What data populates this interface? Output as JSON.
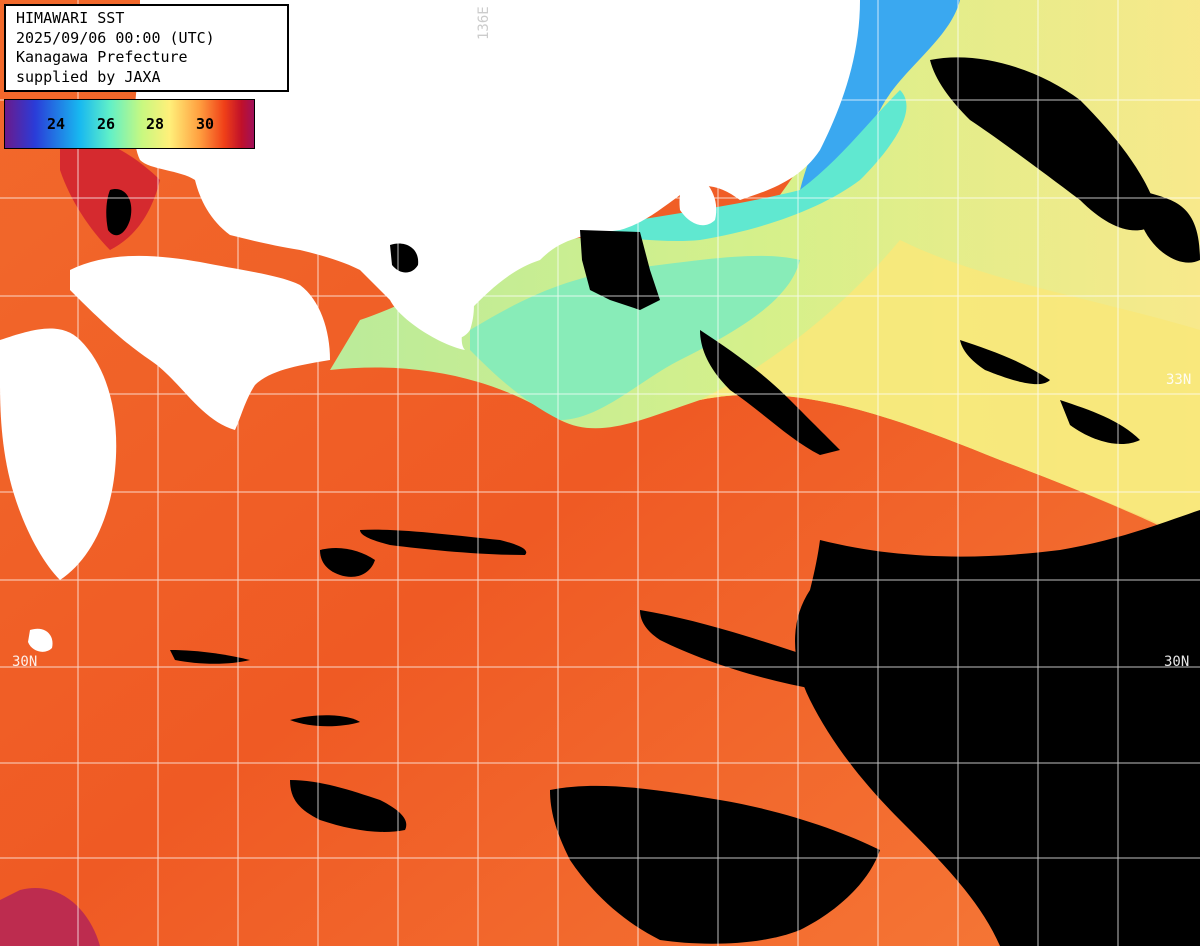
{
  "header": {
    "title": "HIMAWARI SST",
    "datetime": "2025/09/06 00:00 (UTC)",
    "region": "Kanagawa Prefecture",
    "credit": "supplied by JAXA"
  },
  "color_scale": {
    "labels": [
      "24",
      "26",
      "28",
      "30"
    ],
    "gradient": [
      "#6a1a8c",
      "#2a3cd8",
      "#18b8f0",
      "#60f0c8",
      "#c8f880",
      "#fff07a",
      "#ffa040",
      "#f04018",
      "#c0102a",
      "#a0105a"
    ]
  },
  "grid_labels": {
    "lat_33": "33N",
    "lat_30_left": "30N",
    "lat_30_right": "30N",
    "lon_136": "136E"
  },
  "colors": {
    "land": "#ffffff",
    "cloud_mask": "#000000",
    "warm_sea": "#ee5a28",
    "cool_coast": "#a8f0a0",
    "cold_water": "#3aa8f0",
    "grid": "#ffffff"
  }
}
